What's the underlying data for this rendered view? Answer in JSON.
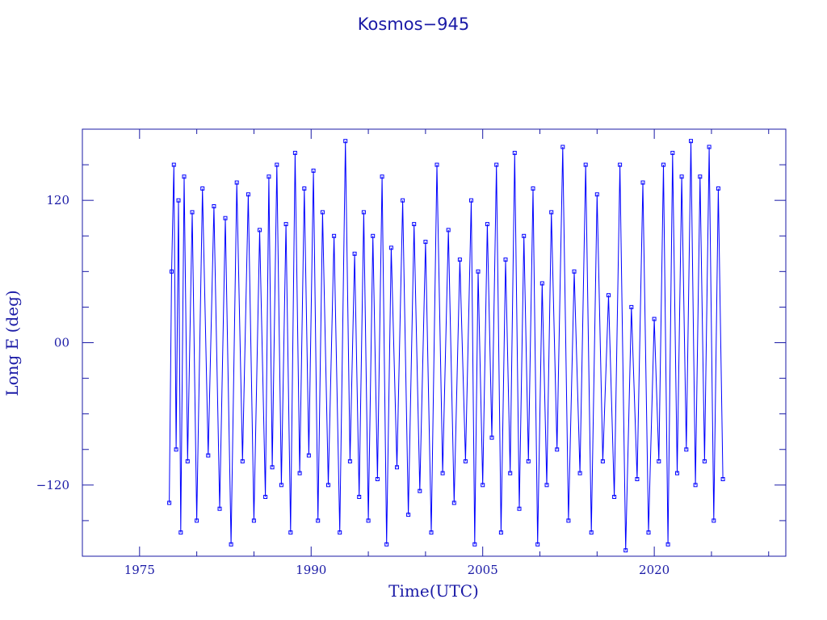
{
  "chart_data": {
    "type": "scatter",
    "title": "Kosmos−945",
    "xlabel": "Time(UTC)",
    "ylabel": "Long E (deg)",
    "xlim": [
      1970.0,
      2031.5
    ],
    "ylim": [
      -180,
      180
    ],
    "x_ticks": [
      1975,
      1990,
      2005,
      2020
    ],
    "x_tick_labels": [
      "1975",
      "1990",
      "2005",
      "2020"
    ],
    "y_ticks": [
      120,
      0,
      -120
    ],
    "y_tick_labels": [
      "120",
      "00",
      "−120"
    ],
    "grid": false,
    "legend": "none",
    "series_color": "#0000ff",
    "series": [
      {
        "x": [
          1977.6,
          1977.8,
          1978.0,
          1978.2,
          1978.4,
          1978.6,
          1978.9,
          1979.2,
          1979.6,
          1980.0,
          1980.5,
          1981.0,
          1981.5,
          1982.0,
          1982.5,
          1983.0,
          1983.5,
          1984.0,
          1984.5,
          1985.0,
          1985.5,
          1986.0,
          1986.3,
          1986.6,
          1987.0,
          1987.4,
          1987.8,
          1988.2,
          1988.6,
          1989.0,
          1989.4,
          1989.8,
          1990.2,
          1990.6,
          1991.0,
          1991.5,
          1992.0,
          1992.5,
          1993.0,
          1993.4,
          1993.8,
          1994.2,
          1994.6,
          1995.0,
          1995.4,
          1995.8,
          1996.2,
          1996.6,
          1997.0,
          1997.5,
          1998.0,
          1998.5,
          1999.0,
          1999.5,
          2000.0,
          2000.5,
          2001.0,
          2001.5,
          2002.0,
          2002.5,
          2003.0,
          2003.5,
          2004.0,
          2004.3,
          2004.6,
          2005.0,
          2005.4,
          2005.8,
          2006.2,
          2006.6,
          2007.0,
          2007.4,
          2007.8,
          2008.2,
          2008.6,
          2009.0,
          2009.4,
          2009.8,
          2010.2,
          2010.6,
          2011.0,
          2011.5,
          2012.0,
          2012.5,
          2013.0,
          2013.5,
          2014.0,
          2014.5,
          2015.0,
          2015.5,
          2016.0,
          2016.5,
          2017.0,
          2017.5,
          2018.0,
          2018.5,
          2019.0,
          2019.5,
          2020.0,
          2020.4,
          2020.8,
          2021.2,
          2021.6,
          2022.0,
          2022.4,
          2022.8,
          2023.2,
          2023.6,
          2024.0,
          2024.4,
          2024.8,
          2025.2,
          2025.6,
          2026.0
        ],
        "y": [
          -135,
          60,
          150,
          -90,
          120,
          -160,
          140,
          -100,
          110,
          -150,
          130,
          -95,
          115,
          -140,
          105,
          -170,
          135,
          -100,
          125,
          -150,
          95,
          -130,
          140,
          -105,
          150,
          -120,
          100,
          -160,
          160,
          -110,
          130,
          -95,
          145,
          -150,
          110,
          -120,
          90,
          -160,
          170,
          -100,
          75,
          -130,
          110,
          -150,
          90,
          -115,
          140,
          -170,
          80,
          -105,
          120,
          -145,
          100,
          -125,
          85,
          -160,
          150,
          -110,
          95,
          -135,
          70,
          -100,
          120,
          -170,
          60,
          -120,
          100,
          -80,
          150,
          -160,
          70,
          -110,
          160,
          -140,
          90,
          -100,
          130,
          -170,
          50,
          -120,
          110,
          -90,
          165,
          -150,
          60,
          -110,
          150,
          -160,
          125,
          -100,
          40,
          -130,
          150,
          -175,
          30,
          -115,
          135,
          -160,
          20,
          -100,
          150,
          -170,
          160,
          -110,
          140,
          -90,
          170,
          -120,
          140,
          -100,
          165,
          -150,
          130,
          -115
        ]
      }
    ]
  }
}
